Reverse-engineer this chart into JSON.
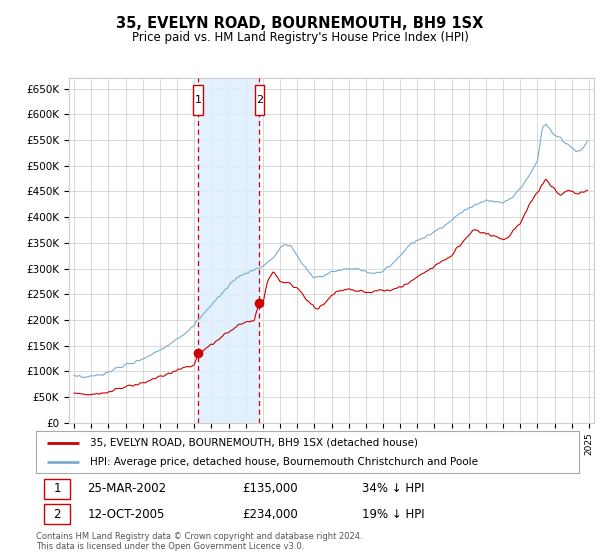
{
  "title": "35, EVELYN ROAD, BOURNEMOUTH, BH9 1SX",
  "subtitle": "Price paid vs. HM Land Registry's House Price Index (HPI)",
  "ylim": [
    0,
    670000
  ],
  "yticks": [
    0,
    50000,
    100000,
    150000,
    200000,
    250000,
    300000,
    350000,
    400000,
    450000,
    500000,
    550000,
    600000,
    650000
  ],
  "ytick_labels": [
    "£0",
    "£50K",
    "£100K",
    "£150K",
    "£200K",
    "£250K",
    "£300K",
    "£350K",
    "£400K",
    "£450K",
    "£500K",
    "£550K",
    "£600K",
    "£650K"
  ],
  "xticks": [
    1995,
    1996,
    1997,
    1998,
    1999,
    2000,
    2001,
    2002,
    2003,
    2004,
    2005,
    2006,
    2007,
    2008,
    2009,
    2010,
    2011,
    2012,
    2013,
    2014,
    2015,
    2016,
    2017,
    2018,
    2019,
    2020,
    2021,
    2022,
    2023,
    2024,
    2025
  ],
  "line1_color": "#cc0000",
  "line2_color": "#7aadcf",
  "marker1_date": 2002.23,
  "marker2_date": 2005.79,
  "marker1_price": 135000,
  "marker2_price": 234000,
  "marker1_label": "1",
  "marker2_label": "2",
  "legend_line1": "35, EVELYN ROAD, BOURNEMOUTH, BH9 1SX (detached house)",
  "legend_line2": "HPI: Average price, detached house, Bournemouth Christchurch and Poole",
  "transaction1_date": "25-MAR-2002",
  "transaction1_price": "£135,000",
  "transaction1_hpi": "34% ↓ HPI",
  "transaction2_date": "12-OCT-2005",
  "transaction2_price": "£234,000",
  "transaction2_hpi": "19% ↓ HPI",
  "footer": "Contains HM Land Registry data © Crown copyright and database right 2024.\nThis data is licensed under the Open Government Licence v3.0.",
  "background_color": "#ffffff",
  "grid_color": "#cccccc",
  "shaded_color": "#ddeeff"
}
